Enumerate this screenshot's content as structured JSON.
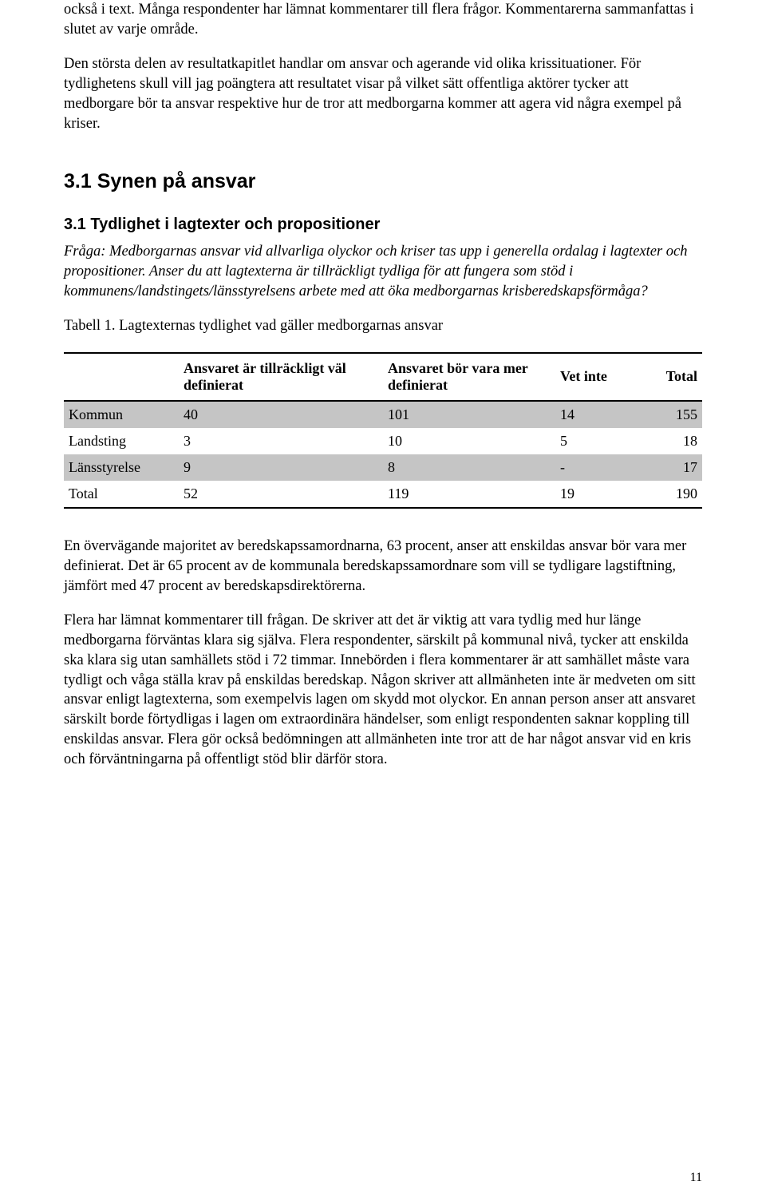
{
  "para1": "också i text. Många respondenter har lämnat kommentarer till flera frågor. Kommentarerna sammanfattas i slutet av varje område.",
  "para2": "Den största delen av resultatkapitlet handlar om ansvar och agerande vid olika krissituationer. För tydlighetens skull vill jag poängtera att resultatet visar på vilket sätt offentliga aktörer tycker att medborgare bör ta ansvar respektive hur de tror att medborgarna kommer att agera vid några exempel på kriser.",
  "h2": "3.1 Synen på ansvar",
  "h3": "3.1 Tydlighet i lagtexter och propositioner",
  "question": "Fråga: Medborgarnas ansvar vid allvarliga olyckor och kriser tas upp i generella ordalag i lagtexter och propositioner. Anser du att lagtexterna är tillräckligt tydliga för att fungera som stöd i kommunens/landstingets/länsstyrelsens arbete med att öka medborgarnas krisberedskapsförmåga?",
  "tableCaption": "Tabell 1. Lagtexternas tydlighet vad gäller medborgarnas ansvar",
  "table": {
    "headers": [
      "",
      "Ansvaret är tillräckligt väl definierat",
      "Ansvaret bör vara mer definierat",
      "Vet inte",
      "Total"
    ],
    "rows": [
      {
        "label": "Kommun",
        "c1": "40",
        "c2": "101",
        "c3": "14",
        "c4": "155",
        "shaded": true
      },
      {
        "label": "Landsting",
        "c1": "3",
        "c2": "10",
        "c3": "5",
        "c4": "18",
        "shaded": false
      },
      {
        "label": "Länsstyrelse",
        "c1": "9",
        "c2": "8",
        "c3": "-",
        "c4": "17",
        "shaded": true
      },
      {
        "label": "Total",
        "c1": "52",
        "c2": "119",
        "c3": "19",
        "c4": "190",
        "shaded": false
      }
    ]
  },
  "para3": "En övervägande majoritet av beredskapssamordnarna, 63 procent, anser att enskildas ansvar bör vara mer definierat. Det är 65 procent av de kommunala beredskapssamordnare som vill se tydligare lagstiftning, jämfört med 47 procent av beredskapsdirektörerna.",
  "para4": "Flera har lämnat kommentarer till frågan. De skriver att det är viktig att vara tydlig med hur länge medborgarna förväntas klara sig själva. Flera respondenter, särskilt på kommunal nivå, tycker att enskilda ska klara sig utan samhällets stöd i 72 timmar. Innebörden i flera kommentarer är att samhället måste vara tydligt och våga ställa krav på enskildas beredskap. Någon skriver att allmänheten inte är medveten om sitt ansvar enligt lagtexterna, som exempelvis lagen om skydd mot olyckor. En annan person anser att ansvaret särskilt borde förtydligas i lagen om extraordinära händelser, som enligt respondenten saknar koppling till enskildas ansvar. Flera gör också bedömningen att allmänheten inte tror att de har något ansvar vid en kris och förväntningarna på offentligt stöd blir därför stora.",
  "pageNumber": "11"
}
